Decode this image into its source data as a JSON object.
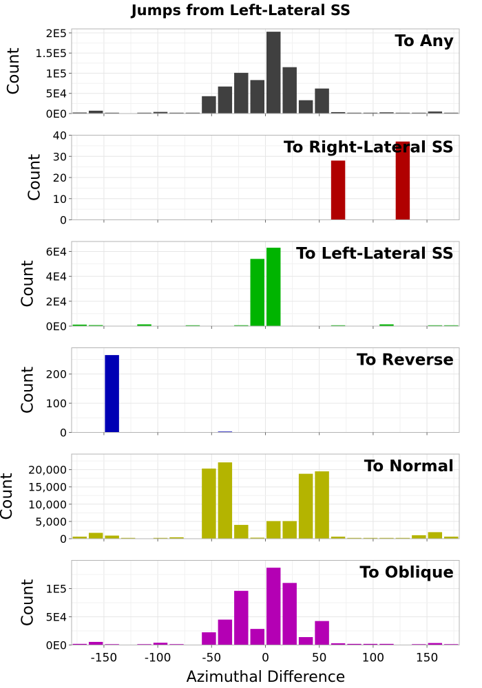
{
  "figure": {
    "title": "Jumps from Left-Lateral SS",
    "xlabel": "Azimuthal Difference",
    "ylabel": "Count",
    "x_ticks": [
      -150,
      -100,
      -50,
      0,
      50,
      100,
      150
    ],
    "x_tick_labels": [
      "-150",
      "-100",
      "-50",
      "0",
      "50",
      "100",
      "150"
    ],
    "xlim": [
      -180,
      180
    ],
    "bin_width": 15
  },
  "chart_data": [
    {
      "type": "bar",
      "title": "To Any",
      "ylabel": "Count",
      "color": "#404040",
      "grid": true,
      "ylim": [
        0,
        210000
      ],
      "y_ticks": [
        0,
        50000,
        100000,
        150000,
        200000
      ],
      "y_tick_labels": [
        "0E0",
        "5E4",
        "1E5",
        "1.5E5",
        "2E5"
      ],
      "x": [
        -172.5,
        -157.5,
        -142.5,
        -127.5,
        -112.5,
        -97.5,
        -82.5,
        -67.5,
        -52.5,
        -37.5,
        -22.5,
        -7.5,
        7.5,
        22.5,
        37.5,
        52.5,
        67.5,
        82.5,
        97.5,
        112.5,
        127.5,
        142.5,
        157.5,
        172.5
      ],
      "values": [
        2500,
        7000,
        2000,
        0,
        1500,
        4000,
        1500,
        500,
        43000,
        67000,
        101000,
        83000,
        203000,
        115000,
        33000,
        62000,
        3500,
        1500,
        1500,
        3000,
        500,
        1500,
        5000,
        2000
      ]
    },
    {
      "type": "bar",
      "title": "To Right-Lateral SS",
      "ylabel": "Count",
      "color": "#b00000",
      "grid": true,
      "ylim": [
        0,
        40
      ],
      "y_ticks": [
        0,
        10,
        20,
        30,
        40
      ],
      "y_tick_labels": [
        "0",
        "10",
        "20",
        "30",
        "40"
      ],
      "x": [
        -172.5,
        -157.5,
        -142.5,
        -127.5,
        -112.5,
        -97.5,
        -82.5,
        -67.5,
        -52.5,
        -37.5,
        -22.5,
        -7.5,
        7.5,
        22.5,
        37.5,
        52.5,
        67.5,
        82.5,
        97.5,
        112.5,
        127.5,
        142.5,
        157.5,
        172.5
      ],
      "values": [
        0,
        0,
        0,
        0,
        0,
        0,
        0,
        0,
        0,
        0,
        0,
        0,
        0,
        0,
        0,
        0,
        28,
        0,
        0,
        0,
        37,
        0,
        0,
        0
      ]
    },
    {
      "type": "bar",
      "title": "To Left-Lateral SS",
      "ylabel": "Count",
      "color": "#00b400",
      "grid": true,
      "ylim": [
        0,
        68000
      ],
      "y_ticks": [
        0,
        20000,
        40000,
        60000
      ],
      "y_tick_labels": [
        "0E0",
        "2E4",
        "4E4",
        "6E4"
      ],
      "x": [
        -172.5,
        -157.5,
        -142.5,
        -127.5,
        -112.5,
        -97.5,
        -82.5,
        -67.5,
        -52.5,
        -37.5,
        -22.5,
        -7.5,
        7.5,
        22.5,
        37.5,
        52.5,
        67.5,
        82.5,
        97.5,
        112.5,
        127.5,
        142.5,
        157.5,
        172.5
      ],
      "values": [
        1200,
        800,
        0,
        0,
        1400,
        0,
        0,
        500,
        0,
        0,
        700,
        54000,
        63000,
        0,
        0,
        0,
        600,
        0,
        0,
        1400,
        0,
        0,
        500,
        600
      ]
    },
    {
      "type": "bar",
      "title": "To Reverse",
      "ylabel": "Count",
      "color": "#0000b4",
      "grid": true,
      "ylim": [
        0,
        290
      ],
      "y_ticks": [
        0,
        100,
        200
      ],
      "y_tick_labels": [
        "0",
        "100",
        "200"
      ],
      "x": [
        -172.5,
        -157.5,
        -142.5,
        -127.5,
        -112.5,
        -97.5,
        -82.5,
        -67.5,
        -52.5,
        -37.5,
        -22.5,
        -7.5,
        7.5,
        22.5,
        37.5,
        52.5,
        67.5,
        82.5,
        97.5,
        112.5,
        127.5,
        142.5,
        157.5,
        172.5
      ],
      "values": [
        0,
        0,
        265,
        0,
        0,
        0,
        0,
        0,
        0,
        2,
        0,
        0,
        0,
        0,
        0,
        0,
        0,
        0,
        0,
        0,
        0,
        0,
        0,
        0
      ]
    },
    {
      "type": "bar",
      "title": "To Normal",
      "ylabel": "Count",
      "color": "#b4b400",
      "grid": true,
      "ylim": [
        0,
        24500
      ],
      "y_ticks": [
        0,
        5000,
        10000,
        15000,
        20000
      ],
      "y_tick_labels": [
        "0",
        "5,000",
        "10,000",
        "15,000",
        "20,000"
      ],
      "x": [
        -172.5,
        -157.5,
        -142.5,
        -127.5,
        -112.5,
        -97.5,
        -82.5,
        -67.5,
        -52.5,
        -37.5,
        -22.5,
        -7.5,
        7.5,
        22.5,
        37.5,
        52.5,
        67.5,
        82.5,
        97.5,
        112.5,
        127.5,
        142.5,
        157.5,
        172.5
      ],
      "values": [
        600,
        1700,
        900,
        100,
        0,
        100,
        400,
        0,
        20300,
        22100,
        4000,
        300,
        5100,
        5100,
        18800,
        19500,
        600,
        100,
        100,
        100,
        200,
        1000,
        1900,
        600
      ]
    },
    {
      "type": "bar",
      "title": "To Oblique",
      "ylabel": "Count",
      "color": "#b400b4",
      "grid": true,
      "ylim": [
        0,
        150000
      ],
      "y_ticks": [
        0,
        50000,
        100000
      ],
      "y_tick_labels": [
        "0E0",
        "5E4",
        "1E5"
      ],
      "x": [
        -172.5,
        -157.5,
        -142.5,
        -127.5,
        -112.5,
        -97.5,
        -82.5,
        -67.5,
        -52.5,
        -37.5,
        -22.5,
        -7.5,
        7.5,
        22.5,
        37.5,
        52.5,
        67.5,
        82.5,
        97.5,
        112.5,
        127.5,
        142.5,
        157.5,
        172.5
      ],
      "values": [
        2000,
        5500,
        1000,
        0,
        1000,
        4000,
        1500,
        0,
        22500,
        45000,
        96000,
        28500,
        137000,
        110000,
        14000,
        42500,
        3000,
        2000,
        2000,
        2000,
        0,
        1000,
        3500,
        1500
      ]
    }
  ]
}
